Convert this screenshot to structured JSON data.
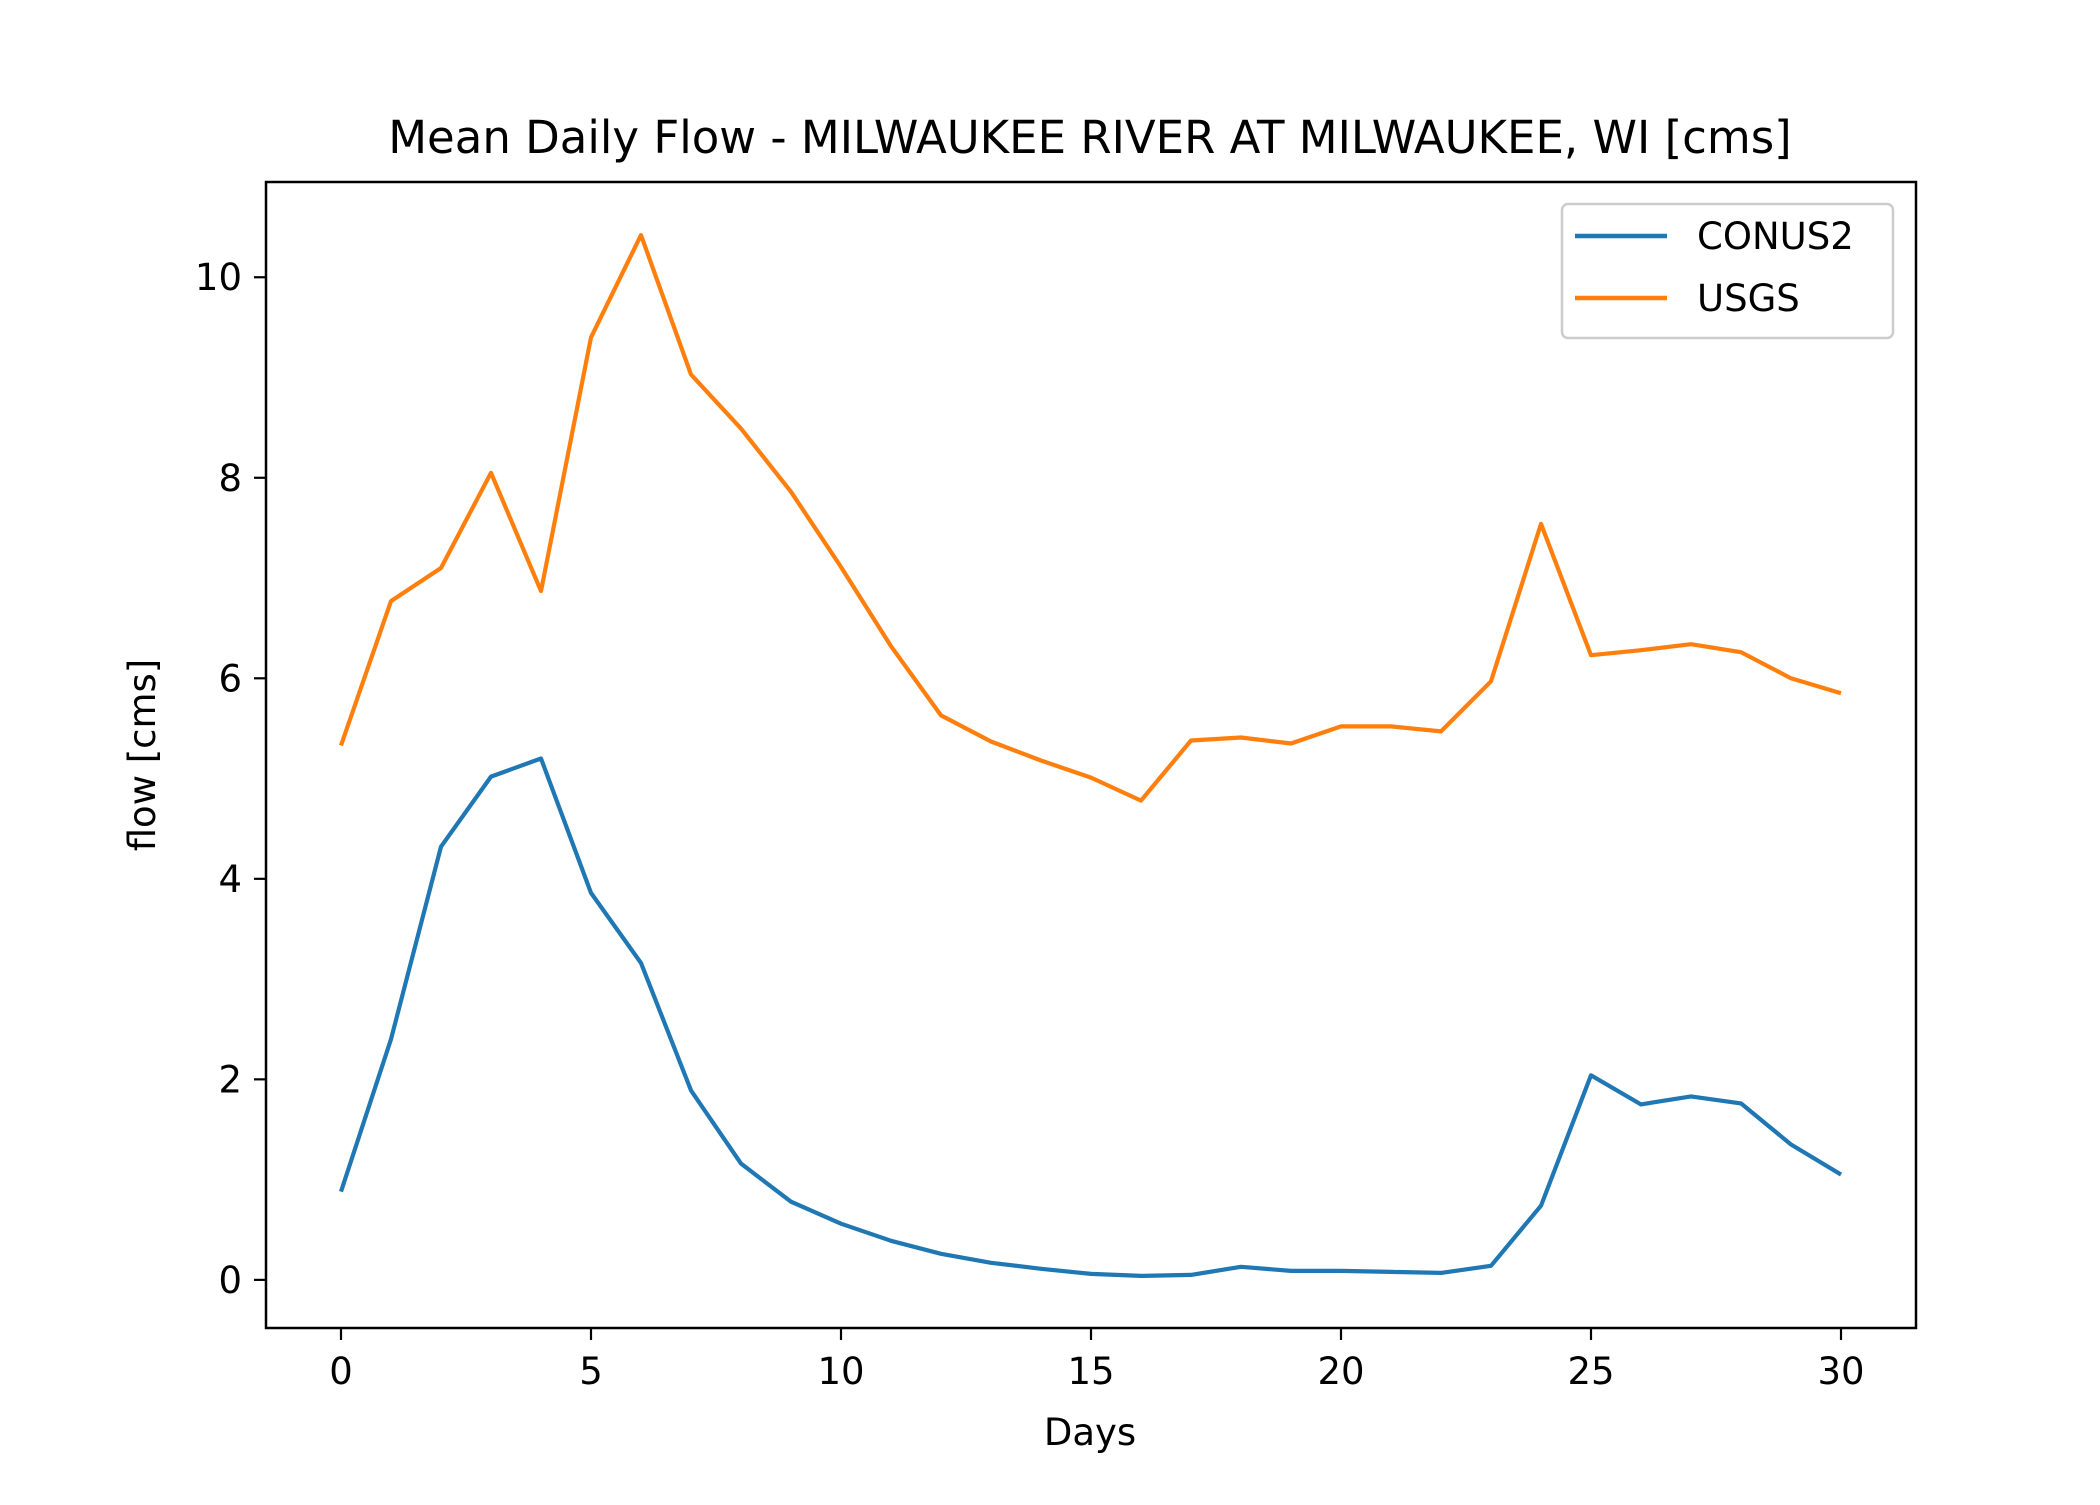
{
  "chart_data": {
    "type": "line",
    "title": "Mean Daily Flow - MILWAUKEE RIVER AT MILWAUKEE, WI [cms]",
    "xlabel": "Days",
    "ylabel": "flow [cms]",
    "xlim": [
      -1.5,
      31.5
    ],
    "ylim": [
      -0.48,
      10.95
    ],
    "xticks": [
      0,
      5,
      10,
      15,
      20,
      25,
      30
    ],
    "yticks": [
      0,
      2,
      4,
      6,
      8,
      10
    ],
    "grid": false,
    "legend_position": "upper right",
    "x": [
      0,
      1,
      2,
      3,
      4,
      5,
      6,
      7,
      8,
      9,
      10,
      11,
      12,
      13,
      14,
      15,
      16,
      17,
      18,
      19,
      20,
      21,
      22,
      23,
      24,
      25,
      26,
      27,
      28,
      29,
      30
    ],
    "series": [
      {
        "name": "CONUS2",
        "color": "#1f77b4",
        "values": [
          0.88,
          2.4,
          4.32,
          5.02,
          5.2,
          3.86,
          3.16,
          1.89,
          1.16,
          0.78,
          0.56,
          0.39,
          0.26,
          0.17,
          0.11,
          0.06,
          0.04,
          0.05,
          0.13,
          0.09,
          0.09,
          0.08,
          0.07,
          0.14,
          0.74,
          2.04,
          1.75,
          1.83,
          1.76,
          1.35,
          1.05
        ]
      },
      {
        "name": "USGS",
        "color": "#ff7f0e",
        "values": [
          5.33,
          6.77,
          7.1,
          8.05,
          6.87,
          9.4,
          10.42,
          9.03,
          8.49,
          7.86,
          7.11,
          6.32,
          5.63,
          5.37,
          5.18,
          5.01,
          4.78,
          5.38,
          5.41,
          5.35,
          5.52,
          5.52,
          5.47,
          5.97,
          7.54,
          6.23,
          6.28,
          6.34,
          6.26,
          6.0,
          5.85
        ]
      }
    ]
  }
}
